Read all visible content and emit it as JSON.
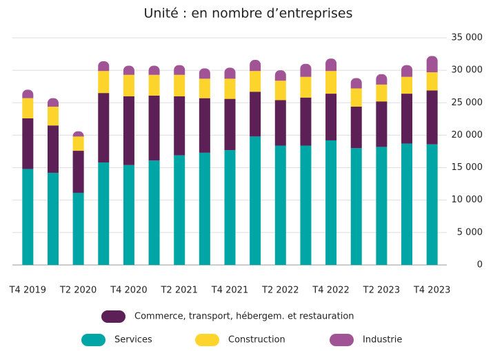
{
  "chart_data": {
    "type": "stacked_bar",
    "title": "Unité : en nombre d’entreprises",
    "categories": [
      "T4 2019",
      null,
      "T2 2020",
      null,
      "T4 2020",
      null,
      "T2 2021",
      null,
      "T4 2021",
      null,
      "T2 2022",
      null,
      "T4 2022",
      null,
      "T2 2023",
      null,
      "T4 2023"
    ],
    "series": [
      {
        "name": "Services",
        "color": "#00a6a6",
        "values": [
          14800,
          14200,
          11100,
          15800,
          15400,
          16100,
          16900,
          17300,
          17700,
          19800,
          18400,
          18400,
          19200,
          18000,
          18200,
          18700,
          18600
        ]
      },
      {
        "name": "Commerce, transport, hébergem. et restauration",
        "color": "#5c1f56",
        "values": [
          7800,
          7300,
          6500,
          10700,
          10600,
          10000,
          9100,
          8400,
          7900,
          6900,
          7000,
          7400,
          7200,
          6400,
          7000,
          7700,
          8300
        ]
      },
      {
        "name": "Construction",
        "color": "#fdd42c",
        "values": [
          3100,
          2900,
          2200,
          3400,
          3300,
          3200,
          3300,
          3000,
          3100,
          3200,
          3000,
          3200,
          3500,
          2800,
          2600,
          2600,
          2800
        ]
      },
      {
        "name": "Industrie",
        "color": "#a05395",
        "values": [
          1300,
          1300,
          800,
          1500,
          1400,
          1400,
          1500,
          1600,
          1700,
          1700,
          1600,
          2000,
          1900,
          1600,
          1600,
          1800,
          2500
        ]
      }
    ],
    "ylim": [
      0,
      35000
    ],
    "yticks": [
      0,
      {
        "value": 5000,
        "label": "5 000"
      },
      {
        "value": 10000,
        "label": "10 000"
      },
      {
        "value": 15000,
        "label": "15 000"
      },
      {
        "value": 20000,
        "label": "20 000"
      },
      {
        "value": 25000,
        "label": "25 000"
      },
      {
        "value": 30000,
        "label": "30 000"
      },
      {
        "value": 35000,
        "label": "35 000"
      }
    ],
    "grid": true
  }
}
